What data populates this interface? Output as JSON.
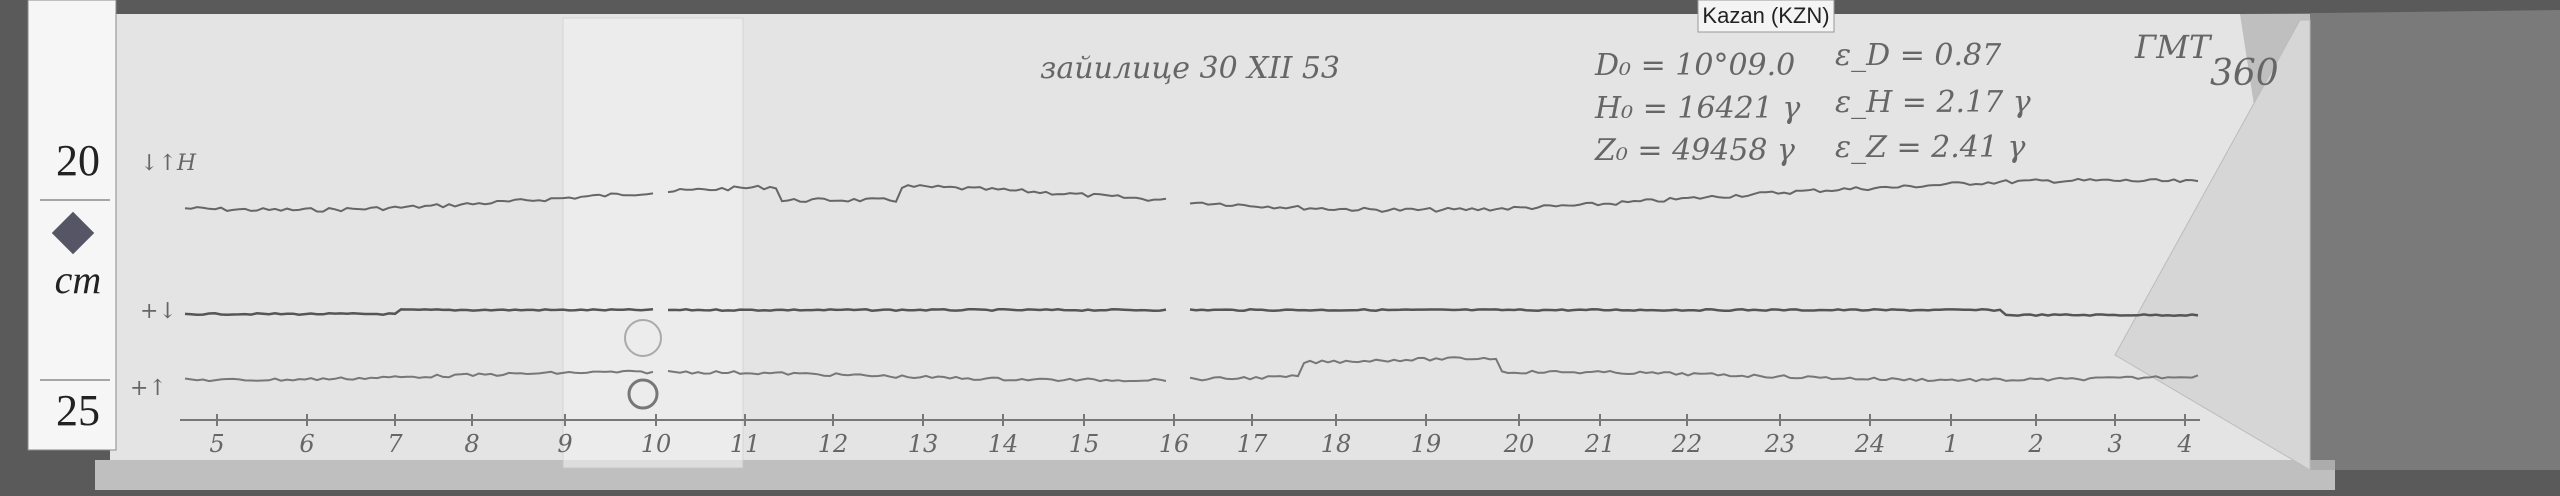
{
  "station_label": "Kazan (KZN)",
  "header": {
    "caption": "зайилице 30 XII 53",
    "baselines": [
      "D₀ = 10°09.0",
      "H₀ = 16421 γ",
      "Z₀ = 49458 γ"
    ],
    "scale_values": [
      "ε_D = 0.87",
      "ε_H = 2.17 γ",
      "ε_Z = 2.41 γ"
    ],
    "time_system": "ГМТ",
    "sheet_number": "360"
  },
  "trace_labels": [
    "↓↑H",
    "+↓",
    "+↑"
  ],
  "ruler_marks": [
    "20",
    "cm",
    "25"
  ],
  "hours": [
    "5",
    "6",
    "7",
    "8",
    "9",
    "10",
    "11",
    "12",
    "13",
    "14",
    "15",
    "16",
    "17",
    "18",
    "19",
    "20",
    "21",
    "22",
    "23",
    "24",
    "1",
    "2",
    "3",
    "4"
  ]
}
